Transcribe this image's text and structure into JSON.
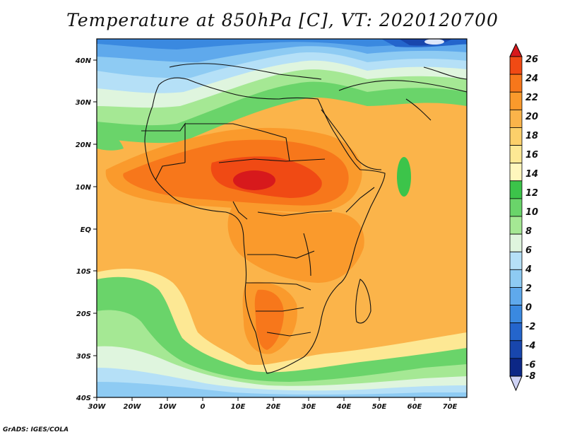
{
  "title": "Temperature at 850hPa [C], VT: 2020120700",
  "footer": "GrADS: IGES/COLA",
  "x_axis_labels": [
    "30W",
    "20W",
    "10W",
    "0",
    "10E",
    "20E",
    "30E",
    "40E",
    "50E",
    "60E",
    "70E"
  ],
  "y_axis_labels": [
    "40N",
    "30N",
    "20N",
    "10N",
    "EQ",
    "10S",
    "20S",
    "30S",
    "40S"
  ],
  "colorbar": {
    "labels": [
      "26",
      "24",
      "22",
      "20",
      "18",
      "16",
      "14",
      "12",
      "10",
      "8",
      "6",
      "4",
      "2",
      "0",
      "-2",
      "-4",
      "-6",
      "-8"
    ],
    "colors": [
      "#d7191c",
      "#f04a14",
      "#f7771b",
      "#fa9a2c",
      "#fbb44a",
      "#fcd06a",
      "#fde894",
      "#fff7bd",
      "#3cc44a",
      "#6ad46a",
      "#a5e894",
      "#dff5de",
      "#b5e0f7",
      "#8ecbf3",
      "#5fa9ec",
      "#3a89e0",
      "#2465cc",
      "#1846ad",
      "#0c2786",
      "#cfd3f5"
    ]
  },
  "map": {
    "region": "Africa",
    "projection": "lat-lon",
    "lon_range": [
      -30,
      75
    ],
    "lat_range": [
      -40,
      45
    ]
  },
  "chart_data": {
    "type": "heatmap",
    "variable": "Temperature at 850hPa",
    "units": "C",
    "valid_time": "2020120700",
    "contour_levels": [
      -8,
      -6,
      -4,
      -2,
      0,
      2,
      4,
      6,
      8,
      10,
      12,
      14,
      16,
      18,
      20,
      22,
      24,
      26
    ]
  }
}
